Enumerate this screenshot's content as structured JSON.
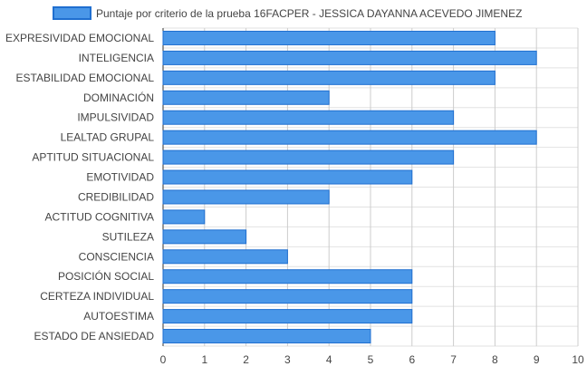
{
  "chart_data": {
    "type": "bar",
    "orientation": "horizontal",
    "legend": {
      "position": "top",
      "label": "Puntaje por criterio de la prueba 16FACPER - JESSICA DAYANNA ACEVEDO JIMENEZ"
    },
    "categories": [
      "EXPRESIVIDAD EMOCIONAL",
      "INTELIGENCIA",
      "ESTABILIDAD EMOCIONAL",
      "DOMINACIÓN",
      "IMPULSIVIDAD",
      "LEALTAD GRUPAL",
      "APTITUD SITUACIONAL",
      "EMOTIVIDAD",
      "CREDIBILIDAD",
      "ACTITUD COGNITIVA",
      "SUTILEZA",
      "CONSCIENCIA",
      "POSICIÓN SOCIAL",
      "CERTEZA INDIVIDUAL",
      "AUTOESTIMA",
      "ESTADO DE ANSIEDAD"
    ],
    "series": [
      {
        "name": "Puntaje por criterio de la prueba 16FACPER - JESSICA DAYANNA ACEVEDO JIMENEZ",
        "values": [
          8,
          9,
          8,
          4,
          7,
          9,
          7,
          6,
          4,
          1,
          2,
          3,
          6,
          6,
          6,
          5
        ]
      }
    ],
    "xlim": [
      0,
      10
    ],
    "xticks": [
      "0",
      "1",
      "2",
      "3",
      "4",
      "5",
      "6",
      "7",
      "8",
      "9",
      "10"
    ],
    "grid": true,
    "colors": {
      "bar_fill": "#4a97e8",
      "bar_stroke": "#1f6fd0",
      "grid": "#cccccc",
      "axis_text": "#444444"
    }
  }
}
